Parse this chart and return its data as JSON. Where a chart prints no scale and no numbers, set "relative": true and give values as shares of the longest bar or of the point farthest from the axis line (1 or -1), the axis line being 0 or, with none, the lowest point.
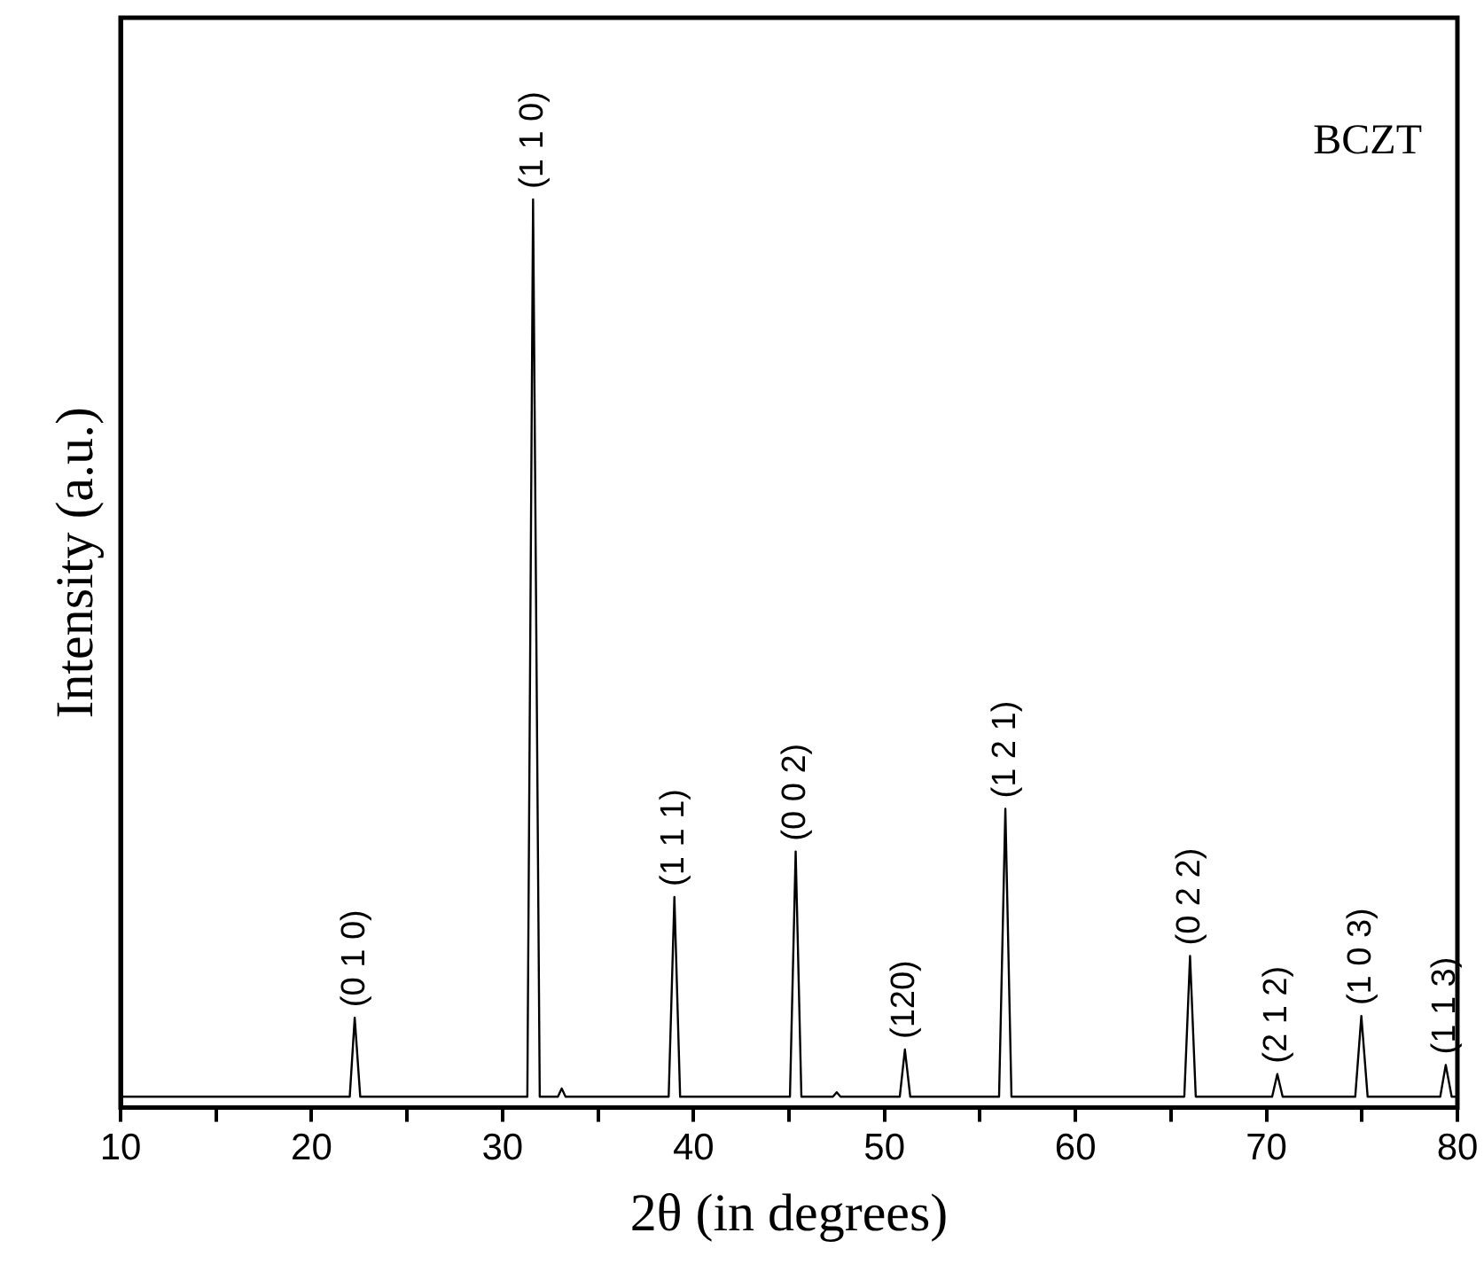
{
  "chart_data": {
    "type": "line",
    "relative": true,
    "xlabel": "2θ (in degrees)",
    "ylabel": "Intensity (a.u.)",
    "xlim": [
      10,
      80
    ],
    "xticks": [
      10,
      {
        "value": 15,
        "label": null
      },
      20,
      {
        "value": 25,
        "label": null
      },
      30,
      {
        "value": 35,
        "label": null
      },
      40,
      {
        "value": 45,
        "label": null
      },
      50,
      {
        "value": 55,
        "label": null
      },
      60,
      {
        "value": 65,
        "label": null
      },
      70,
      {
        "value": 75,
        "label": null
      },
      80
    ],
    "series": [
      {
        "color": "#000000",
        "x": [
          10,
          22.0,
          22.26,
          22.55,
          31.3,
          31.6,
          31.95,
          32.9,
          33.1,
          33.3,
          38.7,
          39.0,
          39.3,
          45.05,
          45.35,
          45.65,
          47.3,
          47.5,
          47.7,
          50.8,
          51.07,
          51.35,
          56.0,
          56.33,
          56.65,
          65.7,
          66.0,
          66.3,
          70.3,
          70.57,
          70.85,
          74.65,
          74.97,
          75.3,
          79.1,
          79.39,
          79.7,
          80
        ],
        "values": [
          0.012,
          0.012,
          0.099,
          0.012,
          0.012,
          1,
          0.012,
          0.012,
          0.021,
          0.012,
          0.012,
          0.232,
          0.012,
          0.012,
          0.282,
          0.012,
          0.012,
          0.017,
          0.012,
          0.012,
          0.064,
          0.012,
          0.012,
          0.329,
          0.012,
          0.012,
          0.167,
          0.012,
          0.012,
          0.037,
          0.012,
          0.012,
          0.101,
          0.012,
          0.012,
          0.047,
          0.012,
          0.012
        ]
      }
    ],
    "annotations": [
      {
        "text": "(0 1 0)",
        "x": 22.26,
        "y": 0.099
      },
      {
        "text": "(1 1 0)",
        "x": 31.6,
        "y": 1
      },
      {
        "text": "(1 1 1)",
        "x": 39.0,
        "y": 0.232
      },
      {
        "text": "(0 0 2)",
        "x": 45.35,
        "y": 0.282
      },
      {
        "text": "(120)",
        "x": 51.07,
        "y": 0.064
      },
      {
        "text": "(1 2 1)",
        "x": 56.33,
        "y": 0.329
      },
      {
        "text": "(0 2 2)",
        "x": 66.0,
        "y": 0.167
      },
      {
        "text": "(2 1 2)",
        "x": 70.57,
        "y": 0.037
      },
      {
        "text": "(1 0 3)",
        "x": 74.97,
        "y": 0.101
      },
      {
        "text": "(1 1 3)",
        "x": 79.39,
        "y": 0.047
      },
      "BCZT"
    ],
    "grid": false,
    "legend": false,
    "marker": "none",
    "line_style": "solid"
  }
}
